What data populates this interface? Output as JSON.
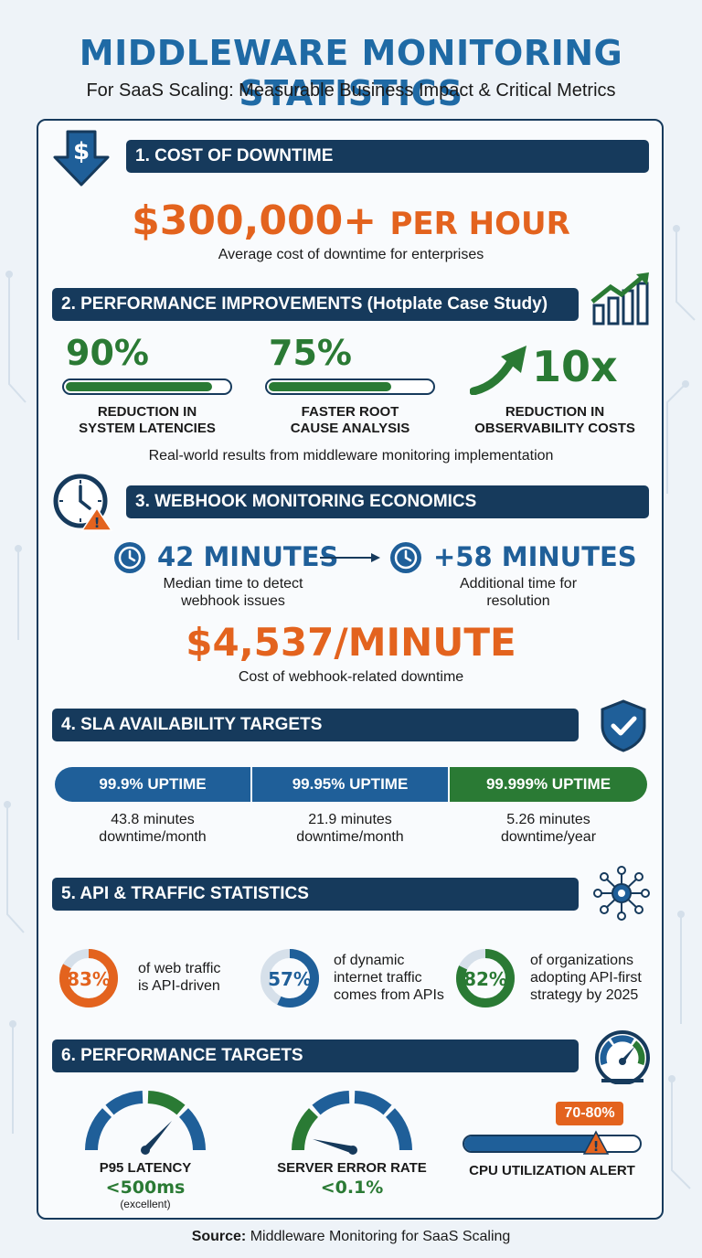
{
  "header": {
    "title": "MIDDLEWARE MONITORING STATISTICS",
    "subtitle": "For SaaS Scaling: Measurable Business Impact & Critical Metrics"
  },
  "s1": {
    "title": "1. COST OF DOWNTIME",
    "amount": "$300,000+",
    "unit": "PER HOUR",
    "caption": "Average cost of downtime for enterprises",
    "icon": "dollar-down-arrow-icon"
  },
  "s2": {
    "title": "2. PERFORMANCE IMPROVEMENTS (Hotplate Case Study)",
    "icon": "growth-chart-icon",
    "stats": [
      {
        "value": "90%",
        "fill": 0.9,
        "label1": "REDUCTION IN",
        "label2": "SYSTEM LATENCIES"
      },
      {
        "value": "75%",
        "fill": 0.75,
        "label1": "FASTER ROOT",
        "label2": "CAUSE ANALYSIS"
      },
      {
        "value": "10x",
        "label1": "REDUCTION IN",
        "label2": "OBSERVABILITY COSTS"
      }
    ],
    "caption": "Real-world results from middleware monitoring implementation"
  },
  "s3": {
    "title": "3. WEBHOOK MONITORING ECONOMICS",
    "icon": "clock-alert-icon",
    "detect_value": "42 MINUTES",
    "detect_label1": "Median time to detect",
    "detect_label2": "webhook issues",
    "resolve_value": "+58 MINUTES",
    "resolve_label1": "Additional time for",
    "resolve_label2": "resolution",
    "cost": "$4,537/MINUTE",
    "cost_caption": "Cost of webhook-related downtime"
  },
  "s4": {
    "title": "4. SLA AVAILABILITY TARGETS",
    "icon": "shield-check-icon",
    "tiers": [
      {
        "label": "99.9% UPTIME",
        "line1": "43.8 minutes",
        "line2": "downtime/month",
        "color": "#1f5f99"
      },
      {
        "label": "99.95% UPTIME",
        "line1": "21.9 minutes",
        "line2": "downtime/month",
        "color": "#1f5f99"
      },
      {
        "label": "99.999% UPTIME",
        "line1": "5.26 minutes",
        "line2": "downtime/year",
        "color": "#2a7a34"
      }
    ]
  },
  "s5": {
    "title": "5. API & TRAFFIC STATISTICS",
    "icon": "network-hub-icon",
    "stats": [
      {
        "value": "83%",
        "pct": 83,
        "color": "#e3631e",
        "line1": "of web traffic",
        "line2": "is API-driven",
        "line3": ""
      },
      {
        "value": "57%",
        "pct": 57,
        "color": "#1f5f99",
        "line1": "of dynamic",
        "line2": "internet traffic",
        "line3": "comes from APIs"
      },
      {
        "value": "82%",
        "pct": 82,
        "color": "#2a7a34",
        "line1": "of organizations",
        "line2": "adopting API-first",
        "line3": "strategy by 2025"
      }
    ]
  },
  "s6": {
    "title": "6. PERFORMANCE TARGETS",
    "icon": "speedometer-icon",
    "p95_label": "P95 LATENCY",
    "p95_value": "<500ms",
    "p95_note": "(excellent)",
    "err_label": "SERVER ERROR RATE",
    "err_value": "<0.1%",
    "cpu_badge": "70-80%",
    "cpu_label": "CPU UTILIZATION ALERT",
    "cpu_level": 0.75
  },
  "footer": {
    "source_label": "Source:",
    "source_text": " Middleware Monitoring for SaaS Scaling"
  },
  "colors": {
    "navy": "#163a5c",
    "blue": "#1f5f99",
    "green": "#2a7a34",
    "orange": "#e3631e"
  }
}
